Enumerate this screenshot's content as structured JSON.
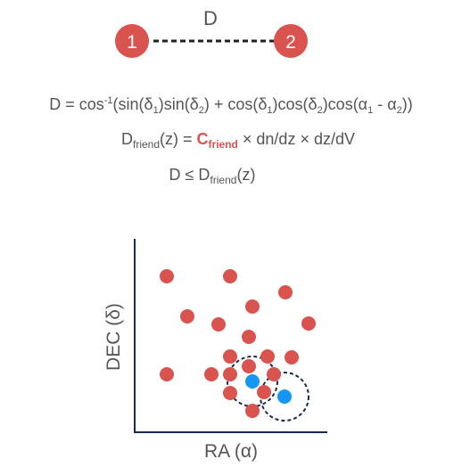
{
  "top_link": {
    "distance_label": "D",
    "node_1_label": "1",
    "node_2_label": "2",
    "node_color": "#d9534f"
  },
  "equations": {
    "eq1": {
      "lhs": "D = cos",
      "sup": "-1",
      "p1": "(sin(δ",
      "s1": "1",
      "p2": ")sin(δ",
      "s2": "2",
      "p3": ") + cos(δ",
      "s3": "1",
      "p4": ")cos(δ",
      "s4": "2",
      "p5": ")cos(α",
      "s5": "1",
      "p6": " - α",
      "s6": "2",
      "p7": "))"
    },
    "eq2": {
      "d": "D",
      "sub": "friend",
      "mid": "(z) = ",
      "c": "C",
      "c_sub": "friend",
      "tail": " × dn/dz × dz/dV",
      "accent_color": "#d9534f"
    },
    "eq3": {
      "lhs": "D ≤ D",
      "sub": "friend",
      "tail": "(z)"
    }
  },
  "scatter": {
    "xlabel": "RA (α)",
    "ylabel": "DEC (δ)",
    "red_color": "#d9534f",
    "blue_color": "#1596f2"
  }
}
